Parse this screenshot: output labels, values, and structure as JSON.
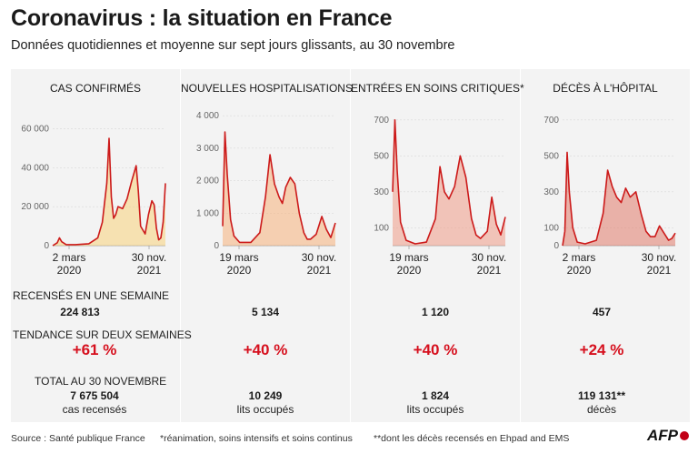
{
  "title": "Coronavirus : la situation en France",
  "subtitle": "Données quotidiennes et moyenne sur sept jours glissants, au 30 novembre",
  "row_labels": {
    "week": "RECENSÉS EN UNE SEMAINE",
    "trend": "TENDANCE SUR DEUX SEMAINES",
    "total": "TOTAL AU 30 NOVEMBRE"
  },
  "panels": [
    {
      "title": "CAS CONFIRMÉS",
      "week": "224 813",
      "trend": "+61 %",
      "total": "7 675 504",
      "total_sub": "cas recensés",
      "start_label": [
        "2 mars",
        "2020"
      ],
      "end_label": [
        "30 nov.",
        "2021"
      ]
    },
    {
      "title": "NOUVELLES HOSPITALISATIONS",
      "week": "5 134",
      "trend": "+40 %",
      "total": "10 249",
      "total_sub": "lits occupés",
      "start_label": [
        "19 mars",
        "2020"
      ],
      "end_label": [
        "30 nov.",
        "2021"
      ]
    },
    {
      "title": "ENTRÉES EN SOINS CRITIQUES*",
      "week": "1 120",
      "trend": "+40 %",
      "total": "1 824",
      "total_sub": "lits occupés",
      "start_label": [
        "19 mars",
        "2020"
      ],
      "end_label": [
        "30 nov.",
        "2021"
      ]
    },
    {
      "title": "DÉCÈS À L'HÔPITAL",
      "week": "457",
      "trend": "+24 %",
      "total": "119 131**",
      "total_sub": "décès",
      "start_label": [
        "2 mars",
        "2020"
      ],
      "end_label": [
        "30 nov.",
        "2021"
      ]
    }
  ],
  "footer": {
    "source": "Source : Santé publique France",
    "note1": "*réanimation, soins intensifs et soins continus",
    "note2": "**dont les décès recensés en Ehpad and EMS",
    "logo": "AFP"
  },
  "colors": {
    "line": "#cc1a1a",
    "trend": "#d6101e",
    "panel_bg": "#f3f3f3",
    "fills": [
      "#f8d27a",
      "#f5b07a",
      "#ee9a86",
      "#e07a6a"
    ]
  },
  "chart_data": [
    {
      "type": "area",
      "title": "CAS CONFIRMÉS",
      "x": [
        0,
        0.04,
        0.06,
        0.08,
        0.12,
        0.2,
        0.32,
        0.4,
        0.44,
        0.48,
        0.5,
        0.52,
        0.54,
        0.56,
        0.58,
        0.62,
        0.66,
        0.7,
        0.74,
        0.76,
        0.78,
        0.82,
        0.85,
        0.88,
        0.9,
        0.92,
        0.94,
        0.96,
        0.98,
        1.0
      ],
      "y": [
        0,
        1500,
        4000,
        2000,
        500,
        500,
        1000,
        4000,
        12000,
        32000,
        55000,
        25000,
        14000,
        16000,
        20000,
        19000,
        24000,
        33000,
        41000,
        28000,
        10000,
        6000,
        16000,
        23000,
        21000,
        9000,
        3000,
        4000,
        12000,
        32000
      ],
      "ylim": [
        0,
        70000
      ],
      "yticks": [
        0,
        20000,
        40000,
        60000
      ],
      "ytick_labels": [
        "0",
        "20 000",
        "40 000",
        "60 000"
      ],
      "xlabels": [
        "2 mars 2020",
        "30 nov. 2021"
      ]
    },
    {
      "type": "area",
      "title": "NOUVELLES HOSPITALISATIONS",
      "x": [
        0,
        0.02,
        0.04,
        0.07,
        0.1,
        0.15,
        0.25,
        0.33,
        0.38,
        0.42,
        0.46,
        0.5,
        0.53,
        0.56,
        0.6,
        0.64,
        0.68,
        0.72,
        0.75,
        0.78,
        0.83,
        0.88,
        0.92,
        0.96,
        1.0
      ],
      "y": [
        600,
        3500,
        2200,
        800,
        300,
        100,
        100,
        400,
        1500,
        2800,
        1900,
        1500,
        1300,
        1800,
        2100,
        1900,
        1000,
        400,
        200,
        200,
        350,
        900,
        500,
        250,
        700
      ],
      "ylim": [
        0,
        4200
      ],
      "yticks": [
        0,
        1000,
        2000,
        3000,
        4000
      ],
      "ytick_labels": [
        "0",
        "1 000",
        "2 000",
        "3 000",
        "4 000"
      ],
      "xlabels": [
        "19 mars 2020",
        "30 nov. 2021"
      ]
    },
    {
      "type": "area",
      "title": "ENTRÉES EN SOINS CRITIQUES*",
      "x": [
        0,
        0.02,
        0.04,
        0.07,
        0.12,
        0.2,
        0.3,
        0.38,
        0.42,
        0.46,
        0.5,
        0.55,
        0.6,
        0.65,
        0.7,
        0.74,
        0.78,
        0.84,
        0.88,
        0.92,
        0.96,
        1.0
      ],
      "y": [
        300,
        700,
        420,
        130,
        30,
        10,
        20,
        150,
        440,
        300,
        260,
        330,
        500,
        380,
        150,
        60,
        40,
        80,
        270,
        120,
        60,
        160
      ],
      "ylim": [
        0,
        760
      ],
      "yticks": [
        100,
        300,
        500,
        700
      ],
      "ytick_labels": [
        "100",
        "300",
        "500",
        "700"
      ],
      "xlabels": [
        "19 mars 2020",
        "30 nov. 2021"
      ]
    },
    {
      "type": "area",
      "title": "DÉCÈS À L'HÔPITAL",
      "x": [
        0,
        0.02,
        0.04,
        0.06,
        0.09,
        0.13,
        0.2,
        0.3,
        0.36,
        0.4,
        0.44,
        0.48,
        0.52,
        0.56,
        0.6,
        0.65,
        0.7,
        0.74,
        0.78,
        0.82,
        0.86,
        0.9,
        0.94,
        0.97,
        1.0
      ],
      "y": [
        0,
        80,
        520,
        300,
        100,
        20,
        10,
        30,
        180,
        420,
        330,
        270,
        240,
        320,
        270,
        300,
        170,
        80,
        50,
        50,
        110,
        70,
        30,
        40,
        70
      ],
      "ylim": [
        0,
        760
      ],
      "yticks": [
        0,
        100,
        300,
        500,
        700
      ],
      "ytick_labels": [
        "0",
        "100",
        "300",
        "500",
        "700"
      ],
      "xlabels": [
        "2 mars 2020",
        "30 nov. 2021"
      ]
    }
  ]
}
